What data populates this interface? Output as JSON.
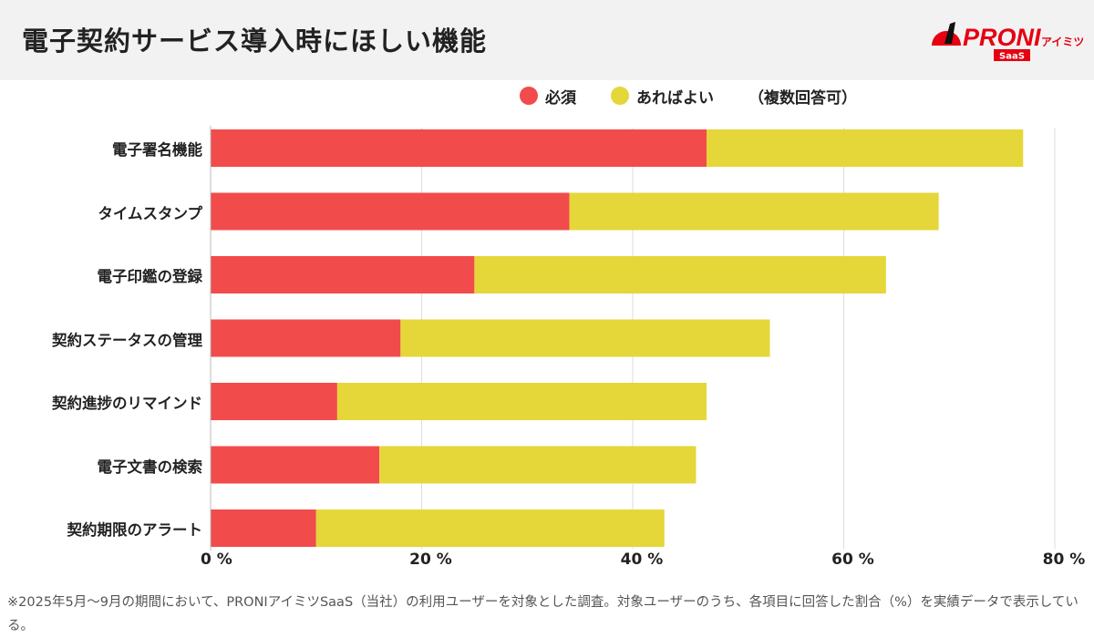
{
  "header": {
    "title": "電子契約サービス導入時にほしい機能",
    "logo_text": "PRONI",
    "logo_sub": "アイミツ",
    "logo_badge": "SaaS"
  },
  "legend": {
    "items": [
      "必須",
      "あればよい"
    ],
    "note": "（複数回答可）"
  },
  "footnote": "※2025年5月〜9月の期間において、PRONIアイミツSaaS（当社）の利用ユーザーを対象とした調査。対象ユーザーのうち、各項目に回答した割合（%）を実績データで表示している。",
  "chart_data": {
    "type": "bar",
    "orientation": "horizontal",
    "stacked": true,
    "categories": [
      "電子署名機能",
      "タイムスタンプ",
      "電子印鑑の登録",
      "契約ステータスの管理",
      "契約進捗のリマインド",
      "電子文書の検索",
      "契約期限のアラート"
    ],
    "series": [
      {
        "name": "必須",
        "color": "#f24b4b",
        "values": [
          47,
          34,
          25,
          18,
          12,
          16,
          10
        ]
      },
      {
        "name": "あればよい",
        "color": "#e5d63a",
        "values": [
          30,
          35,
          39,
          35,
          35,
          30,
          33
        ]
      }
    ],
    "xlim": [
      0,
      80
    ],
    "xticks": [
      "0 %",
      "20 %",
      "40 %",
      "60 %",
      "80 %"
    ],
    "grid": true,
    "legend_position": "top"
  }
}
